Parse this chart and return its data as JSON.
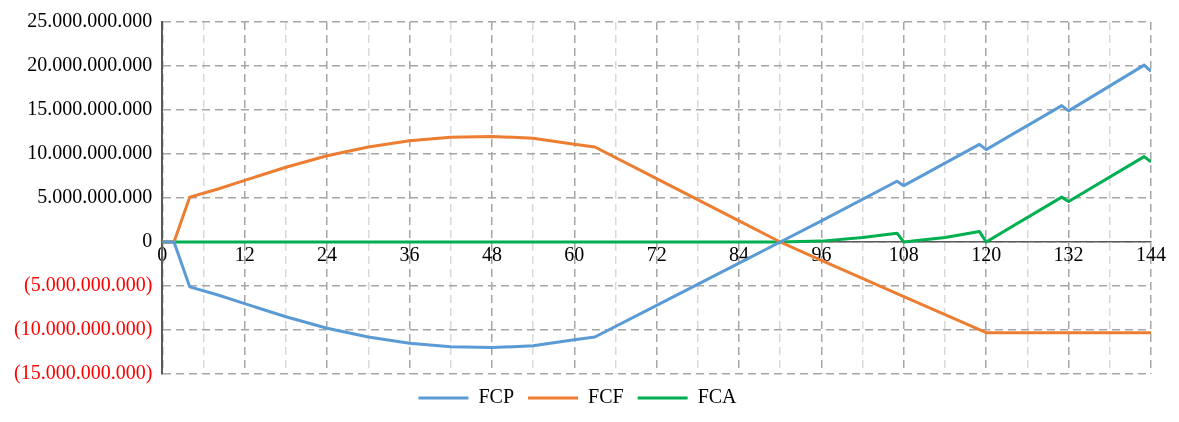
{
  "chart_data": {
    "type": "line",
    "legend": "bottom",
    "grid": true,
    "marker": "none",
    "line_style": "solid",
    "xlim": [
      0,
      144
    ],
    "xticks": [
      0,
      {
        "value": 6,
        "label": null
      },
      12,
      {
        "value": 18,
        "label": null
      },
      24,
      {
        "value": 30,
        "label": null
      },
      36,
      {
        "value": 42,
        "label": null
      },
      48,
      {
        "value": 54,
        "label": null
      },
      60,
      {
        "value": 66,
        "label": null
      },
      72,
      {
        "value": 78,
        "label": null
      },
      84,
      {
        "value": 90,
        "label": null
      },
      96,
      {
        "value": 102,
        "label": null
      },
      108,
      {
        "value": 114,
        "label": null
      },
      120,
      {
        "value": 126,
        "label": null
      },
      132,
      {
        "value": 138,
        "label": null
      },
      144
    ],
    "ylim": [
      -15000000000,
      25000000000
    ],
    "yticks": [
      {
        "value": -15000000000,
        "label": "(15.000.000.000)"
      },
      {
        "value": -10000000000,
        "label": "(10.000.000.000)"
      },
      {
        "value": -5000000000,
        "label": "(5.000.000.000)"
      },
      0,
      {
        "value": 5000000000,
        "label": "5.000.000.000"
      },
      {
        "value": 10000000000,
        "label": "10.000.000.000"
      },
      {
        "value": 15000000000,
        "label": "15.000.000.000"
      },
      {
        "value": 20000000000,
        "label": "20.000.000.000"
      },
      {
        "value": 25000000000,
        "label": "25.000.000.000"
      }
    ],
    "series": [
      {
        "name": "FCP",
        "color": "#5b9bd5",
        "x": [
          0,
          1.7,
          4,
          8,
          12,
          18,
          24,
          30,
          36,
          42,
          48,
          54,
          60,
          63,
          72,
          84,
          90,
          96,
          107,
          108,
          119,
          120,
          131,
          132,
          143,
          144
        ],
        "values": [
          0,
          0,
          -5100000000,
          -6000000000,
          -7000000000,
          -8500000000,
          -9800000000,
          -10800000000,
          -11500000000,
          -11900000000,
          -12000000000,
          -11800000000,
          -11100000000,
          -10800000000,
          -7200000000,
          -2400000000,
          0,
          2400000000,
          6900000000,
          6400000000,
          11100000000,
          10500000000,
          15500000000,
          14900000000,
          20100000000,
          19400000000
        ]
      },
      {
        "name": "FCF",
        "color": "#ed7d31",
        "x": [
          0,
          1.7,
          4,
          8,
          12,
          18,
          24,
          30,
          36,
          42,
          48,
          54,
          60,
          63,
          72,
          84,
          90,
          96,
          108,
          120,
          132,
          144
        ],
        "values": [
          0,
          0,
          5100000000,
          6000000000,
          7000000000,
          8500000000,
          9800000000,
          10800000000,
          11500000000,
          11900000000,
          12000000000,
          11800000000,
          11100000000,
          10800000000,
          7200000000,
          2400000000,
          0,
          -2100000000,
          -6200000000,
          -10300000000,
          -10300000000,
          -10300000000
        ]
      },
      {
        "name": "FCA",
        "color": "#00b050",
        "x": [
          0,
          90,
          96,
          102,
          107,
          108,
          114,
          119,
          120,
          131,
          132,
          143,
          144
        ],
        "values": [
          0,
          0,
          100000000,
          500000000,
          1000000000,
          0,
          500000000,
          1200000000,
          0,
          5100000000,
          4600000000,
          9700000000,
          9100000000
        ]
      }
    ]
  }
}
